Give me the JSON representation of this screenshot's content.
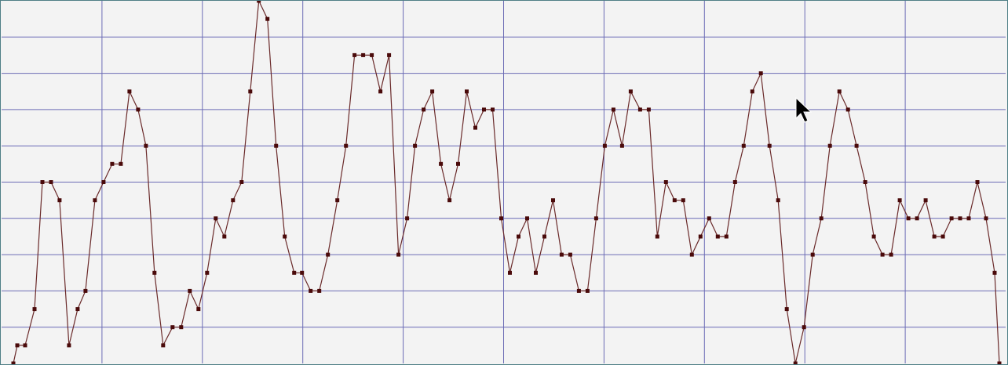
{
  "chart_data": {
    "type": "line",
    "title": "",
    "xlabel": "",
    "ylabel": "",
    "grid": true,
    "xlim": [
      0,
      1280
    ],
    "ylim": [
      0,
      20
    ],
    "series": [
      {
        "points": [
          [
            15,
            0.0
          ],
          [
            20,
            1.0
          ],
          [
            30,
            1.0
          ],
          [
            42,
            3.0
          ],
          [
            52,
            10.0
          ],
          [
            63,
            10.0
          ],
          [
            74,
            9.0
          ],
          [
            86,
            1.0
          ],
          [
            97,
            3.0
          ],
          [
            107,
            4.0
          ],
          [
            119,
            9.0
          ],
          [
            130,
            10.0
          ],
          [
            141,
            11.0
          ],
          [
            152,
            11.0
          ],
          [
            163,
            15.0
          ],
          [
            174,
            14.0
          ],
          [
            184,
            12.0
          ],
          [
            195,
            5.0
          ],
          [
            206,
            1.0
          ],
          [
            218,
            2.0
          ],
          [
            229,
            2.0
          ],
          [
            240,
            4.0
          ],
          [
            251,
            3.0
          ],
          [
            262,
            5.0
          ],
          [
            273,
            8.0
          ],
          [
            284,
            7.0
          ],
          [
            295,
            9.0
          ],
          [
            306,
            10.0
          ],
          [
            317,
            15.0
          ],
          [
            328,
            20.0
          ],
          [
            339,
            19.0
          ],
          [
            350,
            12.0
          ],
          [
            361,
            7.0
          ],
          [
            373,
            5.0
          ],
          [
            383,
            5.0
          ],
          [
            394,
            4.0
          ],
          [
            405,
            4.0
          ],
          [
            416,
            6.0
          ],
          [
            428,
            9.0
          ],
          [
            439,
            12.0
          ],
          [
            450,
            17.0
          ],
          [
            461,
            17.0
          ],
          [
            472,
            17.0
          ],
          [
            483,
            15.0
          ],
          [
            494,
            17.0
          ],
          [
            506,
            6.0
          ],
          [
            517,
            8.0
          ],
          [
            527,
            12.0
          ],
          [
            538,
            14.0
          ],
          [
            549,
            15.0
          ],
          [
            560,
            11.0
          ],
          [
            571,
            9.0
          ],
          [
            582,
            11.0
          ],
          [
            593,
            15.0
          ],
          [
            604,
            13.0
          ],
          [
            615,
            14.0
          ],
          [
            626,
            14.0
          ],
          [
            637,
            8.0
          ],
          [
            648,
            5.0
          ],
          [
            659,
            7.0
          ],
          [
            670,
            8.0
          ],
          [
            681,
            5.0
          ],
          [
            692,
            7.0
          ],
          [
            703,
            9.0
          ],
          [
            714,
            6.0
          ],
          [
            725,
            6.0
          ],
          [
            736,
            4.0
          ],
          [
            747,
            4.0
          ],
          [
            758,
            8.0
          ],
          [
            769,
            12.0
          ],
          [
            780,
            14.0
          ],
          [
            791,
            12.0
          ],
          [
            802,
            15.0
          ],
          [
            814,
            14.0
          ],
          [
            825,
            14.0
          ],
          [
            836,
            7.0
          ],
          [
            847,
            10.0
          ],
          [
            858,
            9.0
          ],
          [
            869,
            9.0
          ],
          [
            880,
            6.0
          ],
          [
            891,
            7.0
          ],
          [
            902,
            8.0
          ],
          [
            913,
            7.0
          ],
          [
            924,
            7.0
          ],
          [
            935,
            10.0
          ],
          [
            946,
            12.0
          ],
          [
            957,
            15.0
          ],
          [
            968,
            16.0
          ],
          [
            979,
            12.0
          ],
          [
            990,
            9.0
          ],
          [
            1001,
            3.0
          ],
          [
            1012,
            0.0
          ],
          [
            1023,
            2.0
          ],
          [
            1034,
            6.0
          ],
          [
            1045,
            8.0
          ],
          [
            1056,
            12.0
          ],
          [
            1068,
            15.0
          ],
          [
            1079,
            14.0
          ],
          [
            1090,
            12.0
          ],
          [
            1101,
            10.0
          ],
          [
            1112,
            7.0
          ],
          [
            1123,
            6.0
          ],
          [
            1134,
            6.0
          ],
          [
            1145,
            9.0
          ],
          [
            1156,
            8.0
          ],
          [
            1167,
            8.0
          ],
          [
            1178,
            9.0
          ],
          [
            1189,
            7.0
          ],
          [
            1200,
            7.0
          ],
          [
            1211,
            8.0
          ],
          [
            1222,
            8.0
          ],
          [
            1233,
            8.0
          ],
          [
            1244,
            10.0
          ],
          [
            1255,
            8.0
          ],
          [
            1266,
            5.0
          ],
          [
            1272,
            0.0
          ]
        ]
      }
    ]
  },
  "colors": {
    "background": "#f3f3f3",
    "grid": "#6b6bb5",
    "line": "#6a2a2a",
    "marker": "#4a0a0a",
    "border": "#4f7f86"
  }
}
